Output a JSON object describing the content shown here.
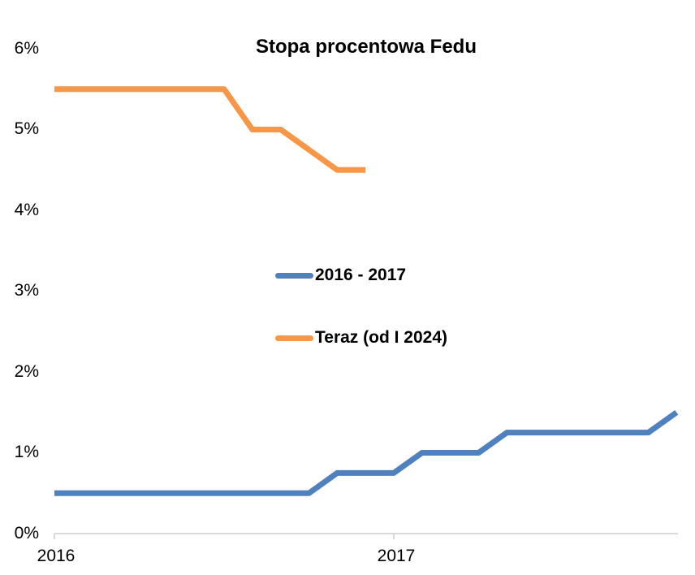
{
  "chart_data": {
    "type": "line",
    "title": "Stopa procentowa Fedu",
    "x_axis": {
      "tick_labels": [
        "2016",
        "2017"
      ],
      "tick_positions_months": [
        0,
        12
      ],
      "range_months": [
        0,
        22
      ]
    },
    "y_axis": {
      "tick_labels_desc": [
        "6%",
        "5%",
        "4%",
        "3%",
        "2%",
        "1%",
        "0%"
      ],
      "ylim": [
        0,
        6
      ],
      "unit": "percent"
    },
    "grid": false,
    "legend_position": "center",
    "axis_color": "#D9D9D9",
    "series": [
      {
        "name": "2016 - 2017",
        "color": "#4E81BD",
        "points": [
          [
            0,
            0.5
          ],
          [
            9,
            0.5
          ],
          [
            10,
            0.75
          ],
          [
            12,
            0.75
          ],
          [
            13,
            1.0
          ],
          [
            15,
            1.0
          ],
          [
            16,
            1.25
          ],
          [
            21,
            1.25
          ],
          [
            22,
            1.5
          ]
        ]
      },
      {
        "name": "Teraz (od I 2024)",
        "color": "#F79646",
        "points": [
          [
            0,
            5.5
          ],
          [
            6,
            5.5
          ],
          [
            7,
            5.0
          ],
          [
            8,
            5.0
          ],
          [
            10,
            4.5
          ],
          [
            11,
            4.5
          ]
        ]
      }
    ]
  }
}
